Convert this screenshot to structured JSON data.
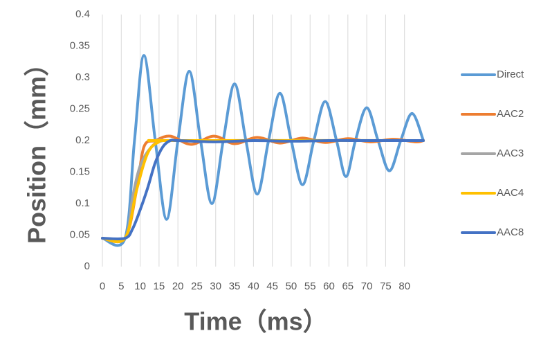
{
  "chart_data": {
    "type": "line",
    "x_label": "Time（ms）",
    "y_label": "Position（mm）",
    "xlim": [
      0,
      85
    ],
    "xticks": [
      0,
      5,
      10,
      15,
      20,
      25,
      30,
      35,
      40,
      45,
      50,
      55,
      60,
      65,
      70,
      75,
      80
    ],
    "ylim": [
      0,
      0.4
    ],
    "yticks": [
      0,
      0.05,
      0.1,
      0.15,
      0.2,
      0.25,
      0.3,
      0.35,
      0.4
    ],
    "grid": "x",
    "legend": "right",
    "series": [
      {
        "name": "Direct",
        "color": "#5b9bd5",
        "x": [
          0,
          6,
          8.5,
          11,
          14,
          17,
          20,
          23,
          26,
          29,
          32,
          35,
          38,
          41,
          44,
          47,
          50,
          53,
          56,
          59,
          62,
          64.5,
          67,
          70,
          73,
          76,
          79,
          82,
          85
        ],
        "values": [
          0.045,
          0.045,
          0.2,
          0.335,
          0.2,
          0.075,
          0.2,
          0.31,
          0.2,
          0.1,
          0.2,
          0.29,
          0.2,
          0.115,
          0.2,
          0.275,
          0.2,
          0.13,
          0.2,
          0.262,
          0.2,
          0.143,
          0.2,
          0.252,
          0.2,
          0.152,
          0.2,
          0.243,
          0.2
        ]
      },
      {
        "name": "AAC2",
        "color": "#ed7d31",
        "x": [
          0,
          6,
          9,
          11,
          14,
          18,
          23.5,
          29.5,
          35,
          41,
          47,
          53,
          59,
          65,
          71,
          77,
          83,
          85
        ],
        "values": [
          0.045,
          0.045,
          0.12,
          0.19,
          0.2,
          0.207,
          0.194,
          0.207,
          0.195,
          0.205,
          0.196,
          0.204,
          0.197,
          0.203,
          0.198,
          0.202,
          0.198,
          0.2
        ]
      },
      {
        "name": "AAC3",
        "color": "#a5a5a5",
        "x": [
          0,
          6,
          8,
          10,
          13,
          16,
          20,
          85
        ],
        "values": [
          0.045,
          0.045,
          0.11,
          0.16,
          0.19,
          0.2,
          0.2,
          0.2
        ]
      },
      {
        "name": "AAC4",
        "color": "#ffc000",
        "x": [
          0,
          6,
          9,
          12,
          15,
          18,
          85
        ],
        "values": [
          0.045,
          0.045,
          0.12,
          0.18,
          0.198,
          0.2,
          0.2
        ]
      },
      {
        "name": "AAC8",
        "color": "#4472c4",
        "x": [
          0,
          6,
          8,
          10,
          12,
          14,
          16,
          18,
          20,
          30,
          40,
          50,
          60,
          70,
          85
        ],
        "values": [
          0.045,
          0.045,
          0.06,
          0.09,
          0.125,
          0.165,
          0.19,
          0.2,
          0.2,
          0.198,
          0.2,
          0.199,
          0.2,
          0.2,
          0.2
        ]
      }
    ]
  }
}
